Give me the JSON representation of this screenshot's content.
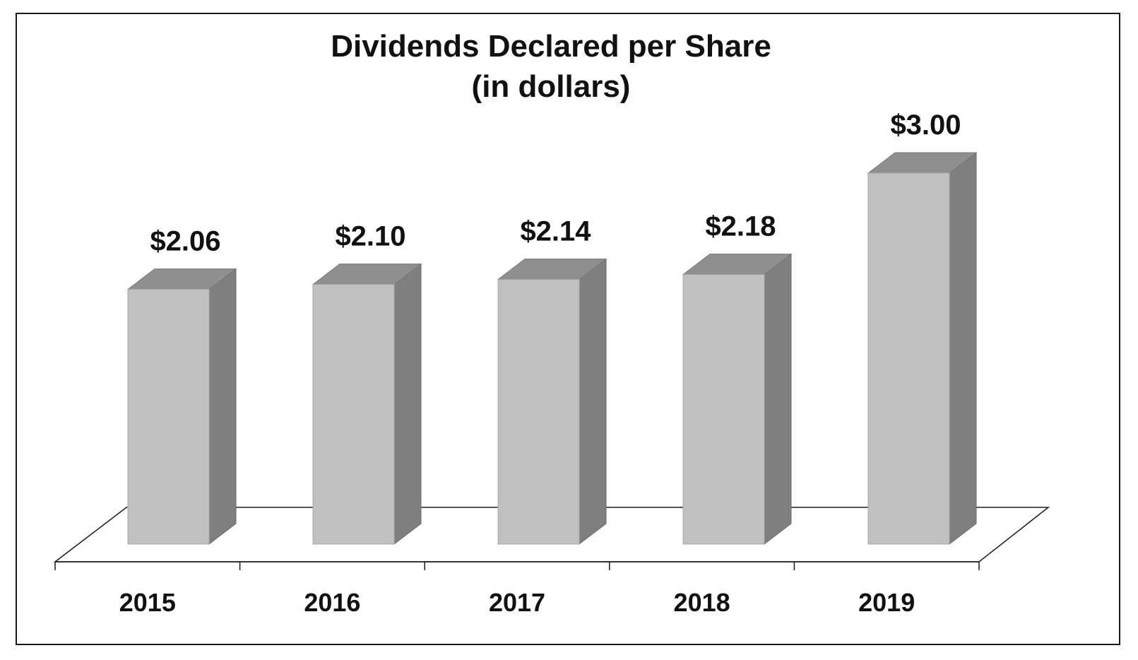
{
  "chart_data": {
    "type": "bar",
    "title": "Dividends Declared per Share",
    "subtitle": "(in dollars)",
    "categories": [
      "2015",
      "2016",
      "2017",
      "2018",
      "2019"
    ],
    "values": [
      2.06,
      2.1,
      2.14,
      2.18,
      3.0
    ],
    "data_labels": [
      "$2.06",
      "$2.10",
      "$2.14",
      "$2.18",
      "$3.00"
    ],
    "xlabel": "",
    "ylabel": "",
    "ylim": [
      0,
      3.6
    ],
    "grid": false,
    "legend": "none",
    "style": "3d-column",
    "colors": {
      "bar_front": "#c0c0c0",
      "bar_side": "#7f7f7f",
      "bar_top": "#8f8f8f",
      "text": "#111111"
    }
  }
}
